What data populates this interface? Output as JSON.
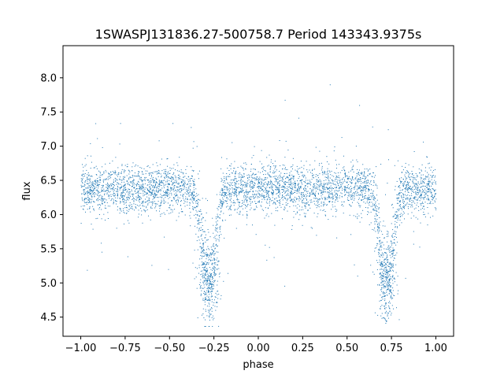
{
  "chart_data": {
    "type": "scatter",
    "title": "1SWASPJ131836.27-500758.7 Period 143343.9375s",
    "xlabel": "phase",
    "ylabel": "flux",
    "xlim": [
      -1.1,
      1.1
    ],
    "ylim": [
      4.22,
      8.47
    ],
    "xticks": [
      -1.0,
      -0.75,
      -0.5,
      -0.25,
      0.0,
      0.25,
      0.5,
      0.75,
      1.0
    ],
    "xtick_labels": [
      "−1.00",
      "−0.75",
      "−0.50",
      "−0.25",
      "0.00",
      "0.25",
      "0.50",
      "0.75",
      "1.00"
    ],
    "yticks": [
      4.5,
      5.0,
      5.5,
      6.0,
      6.5,
      7.0,
      7.5,
      8.0
    ],
    "ytick_labels": [
      "4.5",
      "5.0",
      "5.5",
      "6.0",
      "6.5",
      "7.0",
      "7.5",
      "8.0"
    ],
    "grid": false,
    "legend": "none",
    "marker_color": "#1f77b4",
    "series": [
      {
        "x_range": [
          -1.0,
          1.0
        ],
        "baseline_flux": 6.38,
        "eclipse_minima": [
          {
            "phase": -0.28,
            "flux": 4.9
          },
          {
            "phase": 0.72,
            "flux": 4.9
          }
        ]
      }
    ]
  }
}
